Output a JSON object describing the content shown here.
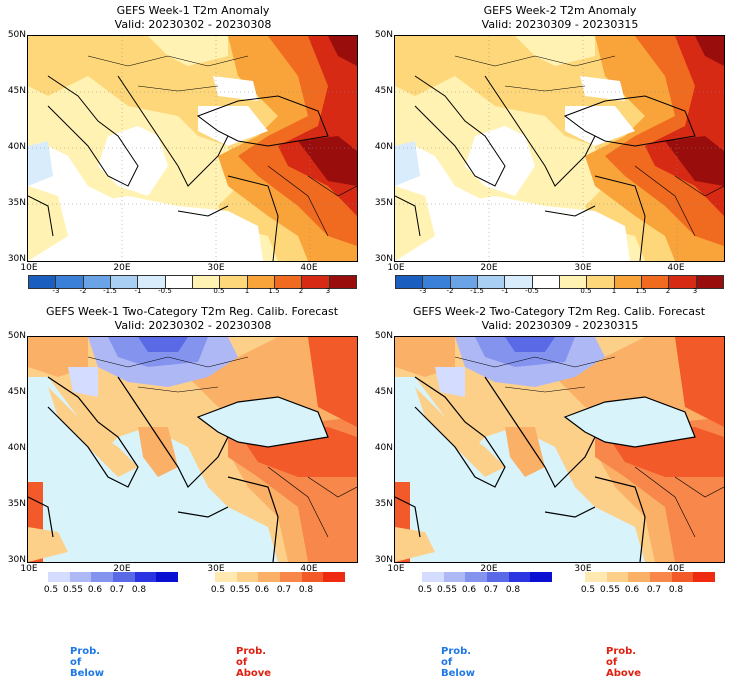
{
  "panels": {
    "tl": {
      "title": "GEFS Week-1 T2m Anomaly",
      "valid": "Valid: 20230302 - 20230308"
    },
    "tr": {
      "title": "GEFS Week-2 T2m Anomaly",
      "valid": "Valid: 20230309 - 20230315"
    },
    "bl": {
      "title": "GEFS Week-1 Two-Category T2m Reg. Calib. Forecast",
      "valid": "Valid: 20230302 - 20230308"
    },
    "br": {
      "title": "GEFS Week-2 Two-Category T2m Reg. Calib. Forecast",
      "valid": "Valid: 20230309 - 20230315"
    }
  },
  "axes": {
    "lat_labels": [
      "50N",
      "45N",
      "40N",
      "35N",
      "30N"
    ],
    "lon_labels": [
      "10E",
      "20E",
      "30E",
      "40E"
    ]
  },
  "anomaly_colorbar": {
    "labels": [
      "-3",
      "-2",
      "-1.5",
      "-1",
      "-0.5",
      "0.5",
      "1",
      "1.5",
      "2",
      "3"
    ],
    "colors": [
      "#1a5fbf",
      "#3a7fd8",
      "#6aa4e6",
      "#a9cff3",
      "#d8ecfb",
      "#ffffff",
      "#fff2b3",
      "#fdd77a",
      "#f9a43b",
      "#f06a1f",
      "#d62a14",
      "#9a0d0d"
    ]
  },
  "prob_below_bar": {
    "labels": [
      "0.5",
      "0.55",
      "0.6",
      "0.7",
      "0.8"
    ],
    "colors": [
      "#d4dcff",
      "#aeb8f5",
      "#8494ee",
      "#5a6ae6",
      "#2a34e0",
      "#0a10d2"
    ]
  },
  "prob_above_bar": {
    "labels": [
      "0.5",
      "0.55",
      "0.6",
      "0.7",
      "0.8"
    ],
    "colors": [
      "#ffe9b0",
      "#fdd08a",
      "#fbb068",
      "#f7874a",
      "#f25a2a",
      "#ee2a10"
    ]
  },
  "legend": {
    "below": "Prob. of Below",
    "above": "Prob. of Above",
    "below_color": "#1e78e6",
    "above_color": "#e02010"
  },
  "map_colors": {
    "sea_prob": "#d8f3fa",
    "land_neutral": "#ffffff"
  }
}
